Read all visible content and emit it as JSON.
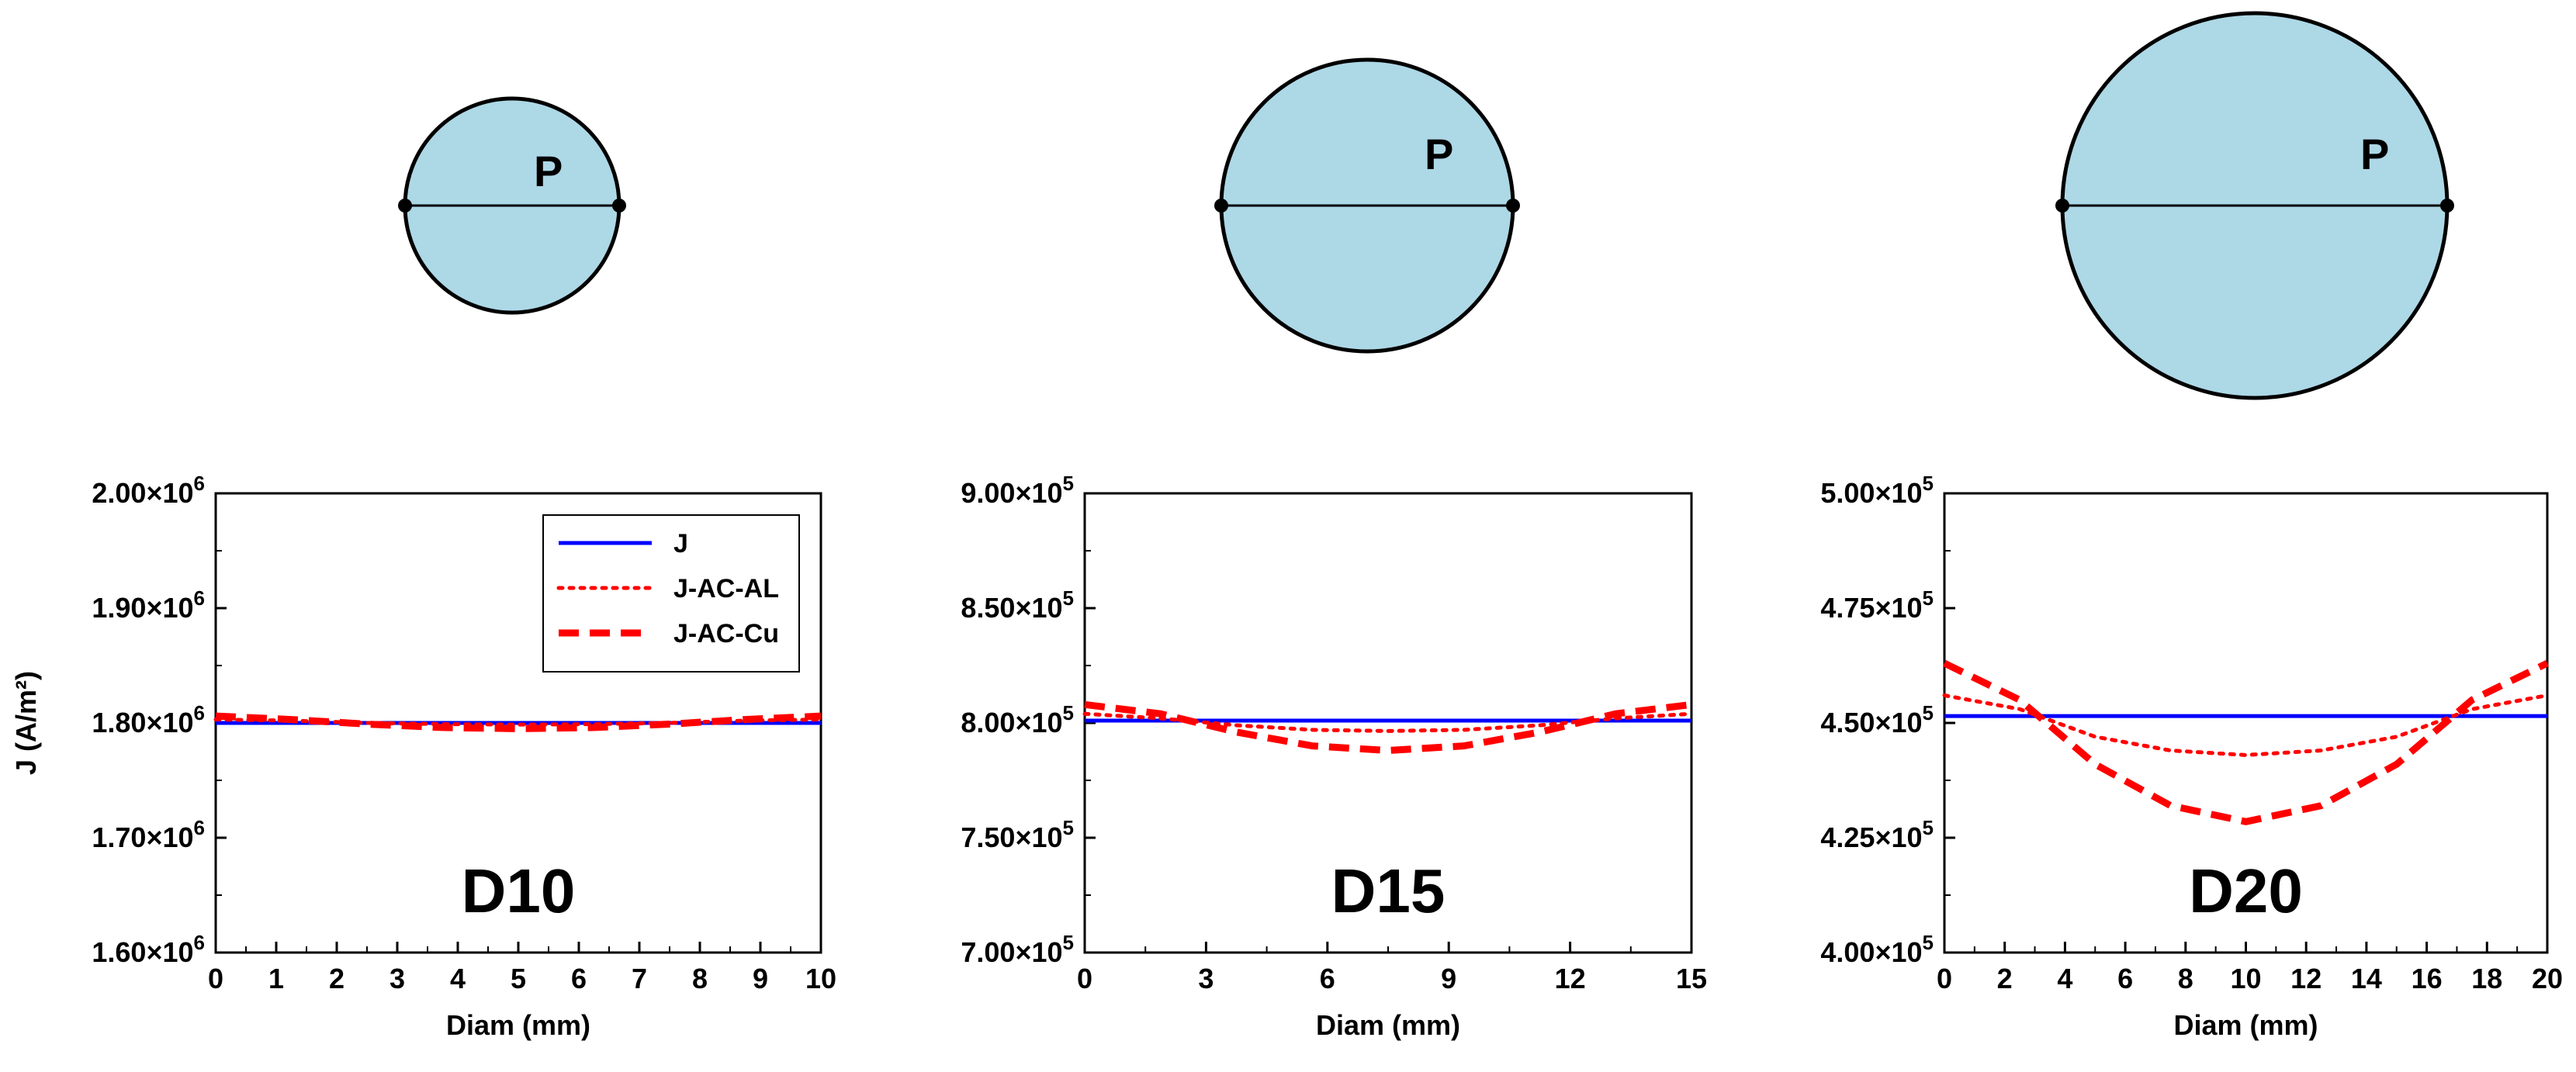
{
  "colors": {
    "circle_fill": "#add8e6",
    "series_J": "#0000ff",
    "series_J_AC_AL": "#ff0000",
    "series_J_AC_Cu": "#ff0000"
  },
  "circle_label": "P",
  "legend": [
    "J",
    "J-AC-AL",
    "J-AC-Cu"
  ],
  "chart_data": [
    {
      "type": "line",
      "panel_label": "D10",
      "xlabel": "Diam (mm)",
      "ylabel": "J (A/m²)",
      "xlim": [
        0,
        10
      ],
      "ylim": [
        1600000,
        2000000
      ],
      "xticks": [
        "0",
        "1",
        "2",
        "3",
        "4",
        "5",
        "6",
        "7",
        "8",
        "9",
        "10"
      ],
      "yticks": [
        {
          "mant": "1.60×10",
          "exp": "6"
        },
        {
          "mant": "1.70×10",
          "exp": "6"
        },
        {
          "mant": "1.80×10",
          "exp": "6"
        },
        {
          "mant": "1.90×10",
          "exp": "6"
        },
        {
          "mant": "2.00×10",
          "exp": "6"
        }
      ],
      "series": [
        {
          "name": "J",
          "style": "solid",
          "x": [
            0,
            10
          ],
          "y": [
            1800000,
            1800000
          ]
        },
        {
          "name": "J-AC-AL",
          "style": "dotted",
          "x": [
            0,
            1.25,
            2.5,
            3.75,
            5,
            6.25,
            7.5,
            8.75,
            10
          ],
          "y": [
            1803000,
            1802000,
            1800000,
            1799000,
            1798500,
            1799000,
            1800000,
            1802000,
            1803000
          ]
        },
        {
          "name": "J-AC-Cu",
          "style": "dashed",
          "x": [
            0,
            1.25,
            2.5,
            3.75,
            5,
            6.25,
            7.5,
            8.75,
            10
          ],
          "y": [
            1806000,
            1803000,
            1799000,
            1796000,
            1795000,
            1796000,
            1799000,
            1803000,
            1806000
          ]
        }
      ]
    },
    {
      "type": "line",
      "panel_label": "D15",
      "xlabel": "Diam (mm)",
      "ylabel": "",
      "xlim": [
        0,
        15
      ],
      "ylim": [
        700000,
        900000
      ],
      "xticks": [
        "0",
        "3",
        "6",
        "9",
        "12",
        "15"
      ],
      "yticks": [
        {
          "mant": "7.00×10",
          "exp": "5"
        },
        {
          "mant": "7.50×10",
          "exp": "5"
        },
        {
          "mant": "8.00×10",
          "exp": "5"
        },
        {
          "mant": "8.50×10",
          "exp": "5"
        },
        {
          "mant": "9.00×10",
          "exp": "5"
        }
      ],
      "series": [
        {
          "name": "J",
          "style": "solid",
          "x": [
            0,
            15
          ],
          "y": [
            801000,
            801000
          ]
        },
        {
          "name": "J-AC-AL",
          "style": "dotted",
          "x": [
            0,
            1.875,
            3.75,
            5.625,
            7.5,
            9.375,
            11.25,
            13.125,
            15
          ],
          "y": [
            804000,
            802000,
            799000,
            797000,
            796500,
            797000,
            799000,
            802000,
            804000
          ]
        },
        {
          "name": "J-AC-Cu",
          "style": "dashed",
          "x": [
            0,
            1.875,
            3.75,
            5.625,
            7.5,
            9.375,
            11.25,
            13.125,
            15
          ],
          "y": [
            808000,
            804000,
            796000,
            790000,
            788000,
            790000,
            796000,
            804000,
            808000
          ]
        }
      ]
    },
    {
      "type": "line",
      "panel_label": "D20",
      "xlabel": "Diam (mm)",
      "ylabel": "",
      "xlim": [
        0,
        20
      ],
      "ylim": [
        400000,
        500000
      ],
      "xticks": [
        "0",
        "2",
        "4",
        "6",
        "8",
        "10",
        "12",
        "14",
        "16",
        "18",
        "20"
      ],
      "yticks": [
        {
          "mant": "4.00×10",
          "exp": "5"
        },
        {
          "mant": "4.25×10",
          "exp": "5"
        },
        {
          "mant": "4.50×10",
          "exp": "5"
        },
        {
          "mant": "4.75×10",
          "exp": "5"
        },
        {
          "mant": "5.00×10",
          "exp": "5"
        }
      ],
      "series": [
        {
          "name": "J",
          "style": "solid",
          "x": [
            0,
            20
          ],
          "y": [
            451500,
            451500
          ]
        },
        {
          "name": "J-AC-AL",
          "style": "dotted",
          "x": [
            0,
            2.5,
            5,
            7.5,
            10,
            12.5,
            15,
            17.5,
            20
          ],
          "y": [
            456000,
            453000,
            447000,
            444000,
            443000,
            444000,
            447000,
            453000,
            456000
          ]
        },
        {
          "name": "J-AC-Cu",
          "style": "dashed",
          "x": [
            0,
            2.5,
            5,
            7.5,
            10,
            12.5,
            15,
            17.5,
            20
          ],
          "y": [
            463000,
            455000,
            441000,
            432000,
            428500,
            432000,
            441000,
            455000,
            463000
          ]
        }
      ]
    }
  ]
}
